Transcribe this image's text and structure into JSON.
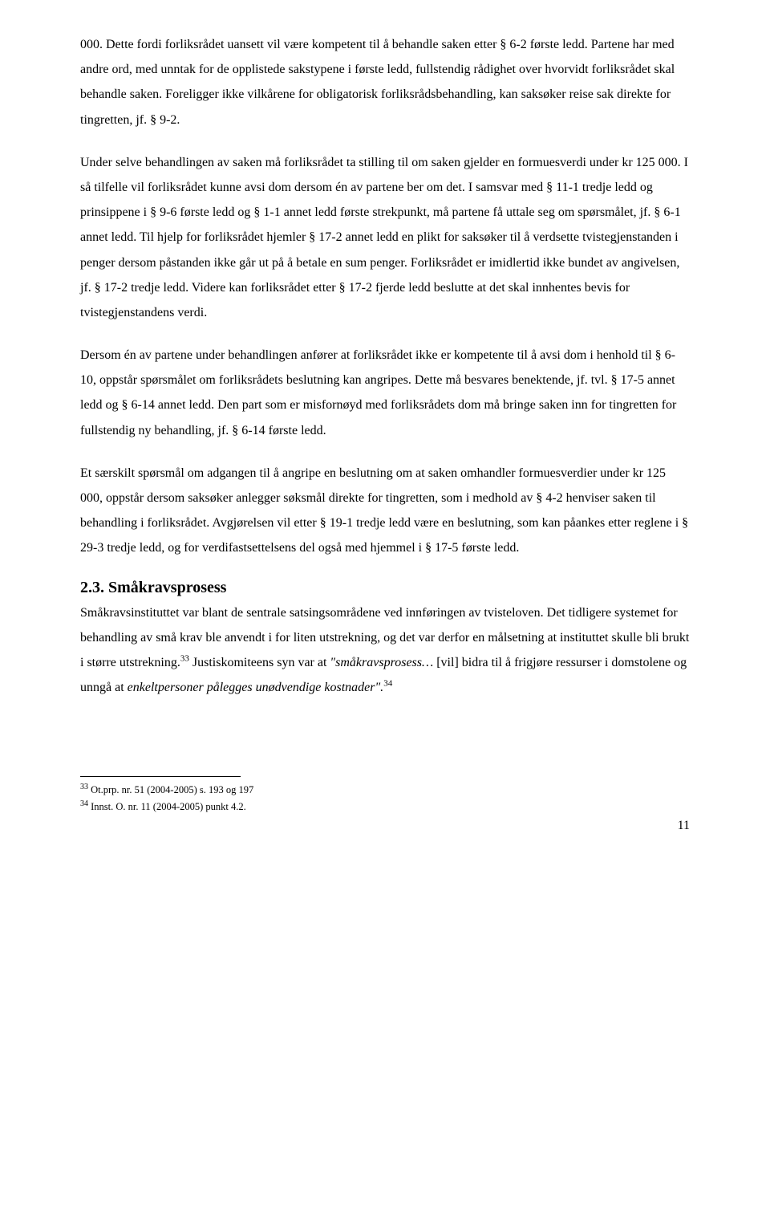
{
  "paragraphs": {
    "p1": "000. Dette fordi forliksrådet uansett vil være kompetent til å behandle saken etter § 6-2 første ledd. Partene har med andre ord, med unntak for de opplistede sakstypene i første ledd, fullstendig rådighet over hvorvidt forliksrådet skal behandle saken. Foreligger ikke vilkårene for obligatorisk forliksrådsbehandling, kan saksøker reise sak direkte for tingretten, jf. § 9-2.",
    "p2": "Under selve behandlingen av saken må forliksrådet ta stilling til om saken gjelder en formuesverdi under kr 125 000. I så tilfelle vil forliksrådet kunne avsi dom dersom én av partene ber om det. I samsvar med § 11-1 tredje ledd og prinsippene i § 9-6 første ledd og § 1-1 annet ledd første strekpunkt, må partene få uttale seg om spørsmålet, jf. § 6-1 annet ledd. Til hjelp for forliksrådet hjemler § 17-2 annet ledd en plikt for saksøker til å verdsette tvistegjenstanden i penger dersom påstanden ikke går ut på å betale en sum penger. Forliksrådet er imidlertid ikke bundet av angivelsen, jf. § 17-2 tredje ledd. Videre kan forliksrådet etter § 17-2 fjerde ledd beslutte at det skal innhentes bevis for tvistegjenstandens verdi.",
    "p3": "Dersom én av partene under behandlingen anfører at forliksrådet ikke er kompetente til å avsi dom i henhold til § 6-10, oppstår spørsmålet om forliksrådets beslutning kan angripes. Dette må besvares benektende, jf. tvl. § 17-5 annet ledd og § 6-14 annet ledd. Den part som er misfornøyd med forliksrådets dom må bringe saken inn for tingretten for fullstendig ny behandling, jf. § 6-14 første ledd.",
    "p4": "Et særskilt spørsmål om adgangen til å angripe en beslutning om at saken omhandler formuesverdier under kr 125 000, oppstår dersom saksøker anlegger søksmål direkte for tingretten, som i medhold av § 4-2 henviser saken til behandling i forliksrådet. Avgjørelsen vil etter § 19-1 tredje ledd være en beslutning, som kan påankes etter reglene i § 29-3 tredje ledd, og for verdifastsettelsens del også med hjemmel i § 17-5 første ledd.",
    "p5_prefix": "Småkravsinstituttet var blant de sentrale satsingsområdene ved innføringen av tvisteloven. Det tidligere systemet for behandling av små krav ble anvendt i for liten utstrekning, og det var derfor en målsetning at instituttet skulle bli brukt i større utstrekning.",
    "p5_fn33": "33",
    "p5_mid": " Justiskomiteens syn var at ",
    "p5_italic1": "\"småkravsprosess…",
    "p5_after_italic1": " [vil] bidra til å frigjøre ressurser i domstolene og unngå at ",
    "p5_italic2": "enkeltpersoner pålegges unødvendige kostnader\".",
    "p5_fn34": "34"
  },
  "heading": "2.3. Småkravsprosess",
  "footnotes": {
    "fn33_num": "33",
    "fn33_text": " Ot.prp. nr. 51 (2004-2005) s. 193 og 197",
    "fn34_num": "34",
    "fn34_text": " Innst. O. nr. 11 (2004-2005) punkt 4.2."
  },
  "page_number": "11"
}
